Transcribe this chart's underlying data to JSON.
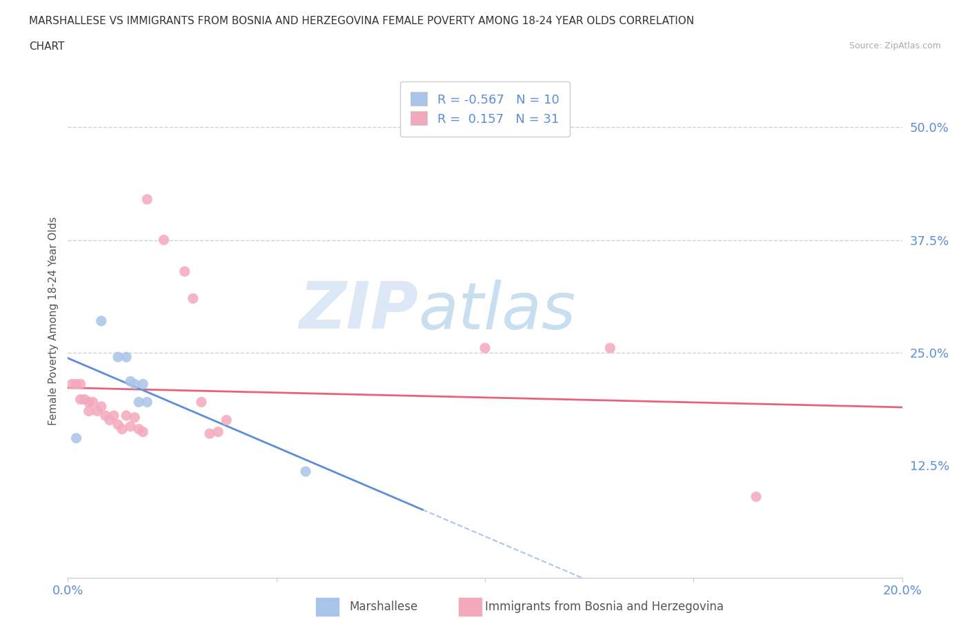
{
  "title_line1": "MARSHALLESE VS IMMIGRANTS FROM BOSNIA AND HERZEGOVINA FEMALE POVERTY AMONG 18-24 YEAR OLDS CORRELATION",
  "title_line2": "CHART",
  "source_text": "Source: ZipAtlas.com",
  "ylabel": "Female Poverty Among 18-24 Year Olds",
  "xlim": [
    0.0,
    0.2
  ],
  "ylim": [
    0.0,
    0.57
  ],
  "xtick_positions": [
    0.0,
    0.05,
    0.1,
    0.15,
    0.2
  ],
  "xticklabels_show": [
    "0.0%",
    "",
    "",
    "",
    "20.0%"
  ],
  "ytick_positions": [
    0.125,
    0.25,
    0.375,
    0.5
  ],
  "ytick_labels": [
    "12.5%",
    "25.0%",
    "37.5%",
    "50.0%"
  ],
  "hlines": [
    0.25,
    0.375,
    0.5
  ],
  "blue_scatter_color": "#a8c4e8",
  "pink_scatter_color": "#f4a8bc",
  "blue_line_color": "#5b8dd9",
  "pink_line_color": "#e8637a",
  "legend_blue_label": "R = -0.567   N = 10",
  "legend_pink_label": "R =  0.157   N = 31",
  "marshallese_label": "Marshallese",
  "bosnia_label": "Immigrants from Bosnia and Herzegovina",
  "blue_x": [
    0.002,
    0.008,
    0.012,
    0.014,
    0.015,
    0.016,
    0.017,
    0.018,
    0.019,
    0.057
  ],
  "blue_y": [
    0.155,
    0.285,
    0.245,
    0.245,
    0.218,
    0.215,
    0.195,
    0.215,
    0.195,
    0.118
  ],
  "pink_x": [
    0.001,
    0.002,
    0.003,
    0.003,
    0.004,
    0.005,
    0.005,
    0.006,
    0.007,
    0.008,
    0.009,
    0.01,
    0.011,
    0.012,
    0.013,
    0.014,
    0.015,
    0.016,
    0.017,
    0.018,
    0.019,
    0.023,
    0.028,
    0.03,
    0.032,
    0.034,
    0.036,
    0.038,
    0.1,
    0.13,
    0.165
  ],
  "pink_y": [
    0.215,
    0.215,
    0.215,
    0.198,
    0.198,
    0.195,
    0.185,
    0.195,
    0.185,
    0.19,
    0.18,
    0.175,
    0.18,
    0.17,
    0.165,
    0.18,
    0.168,
    0.178,
    0.165,
    0.162,
    0.42,
    0.375,
    0.34,
    0.31,
    0.195,
    0.16,
    0.162,
    0.175,
    0.255,
    0.255,
    0.09
  ],
  "background_color": "#ffffff"
}
